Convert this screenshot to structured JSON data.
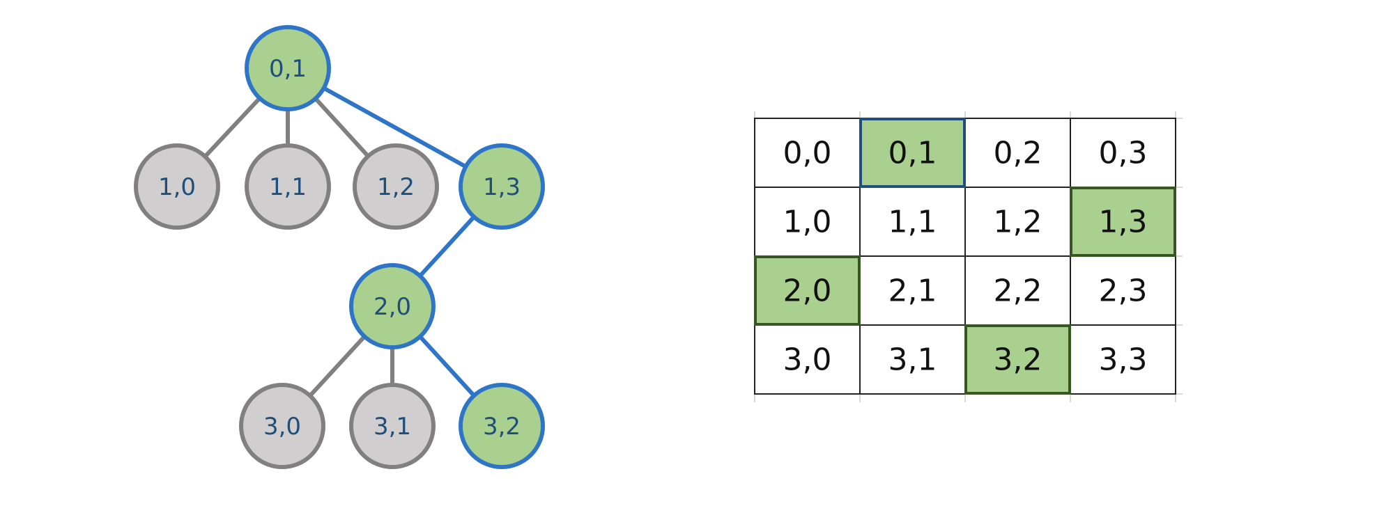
{
  "colors": {
    "active_fill": "#a9d08e",
    "inactive_fill": "#d0cece",
    "active_stroke": "#2e75c7",
    "inactive_stroke": "#808080",
    "active_edge": "#2e75c7",
    "inactive_edge": "#808080",
    "node_text": "#1f4e79",
    "grid_line": "#222222",
    "grid_faint": "#d9d9d9",
    "highlight_border_green": "#375623",
    "highlight_border_blue": "#1f4e79"
  },
  "tree": {
    "nodes": [
      {
        "id": "0,1",
        "label": "0,1",
        "active": true
      },
      {
        "id": "1,0",
        "label": "1,0",
        "active": false
      },
      {
        "id": "1,1",
        "label": "1,1",
        "active": false
      },
      {
        "id": "1,2",
        "label": "1,2",
        "active": false
      },
      {
        "id": "1,3",
        "label": "1,3",
        "active": true
      },
      {
        "id": "2,0",
        "label": "2,0",
        "active": true
      },
      {
        "id": "3,0",
        "label": "3,0",
        "active": false
      },
      {
        "id": "3,1",
        "label": "3,1",
        "active": false
      },
      {
        "id": "3,2",
        "label": "3,2",
        "active": true
      }
    ],
    "edges": [
      {
        "from": "0,1",
        "to": "1,0",
        "active": false
      },
      {
        "from": "0,1",
        "to": "1,1",
        "active": false
      },
      {
        "from": "0,1",
        "to": "1,2",
        "active": false
      },
      {
        "from": "0,1",
        "to": "1,3",
        "active": true
      },
      {
        "from": "1,3",
        "to": "2,0",
        "active": true
      },
      {
        "from": "2,0",
        "to": "3,0",
        "active": false
      },
      {
        "from": "2,0",
        "to": "3,1",
        "active": false
      },
      {
        "from": "2,0",
        "to": "3,2",
        "active": true
      }
    ]
  },
  "grid": {
    "rows": [
      [
        {
          "label": "0,0",
          "highlight": false
        },
        {
          "label": "0,1",
          "highlight": true,
          "border": "blue"
        },
        {
          "label": "0,2",
          "highlight": false
        },
        {
          "label": "0,3",
          "highlight": false
        }
      ],
      [
        {
          "label": "1,0",
          "highlight": false
        },
        {
          "label": "1,1",
          "highlight": false
        },
        {
          "label": "1,2",
          "highlight": false
        },
        {
          "label": "1,3",
          "highlight": true,
          "border": "green"
        }
      ],
      [
        {
          "label": "2,0",
          "highlight": true,
          "border": "green"
        },
        {
          "label": "2,1",
          "highlight": false
        },
        {
          "label": "2,2",
          "highlight": false
        },
        {
          "label": "2,3",
          "highlight": false
        }
      ],
      [
        {
          "label": "3,0",
          "highlight": false
        },
        {
          "label": "3,1",
          "highlight": false
        },
        {
          "label": "3,2",
          "highlight": true,
          "border": "green"
        },
        {
          "label": "3,3",
          "highlight": false
        }
      ]
    ]
  }
}
